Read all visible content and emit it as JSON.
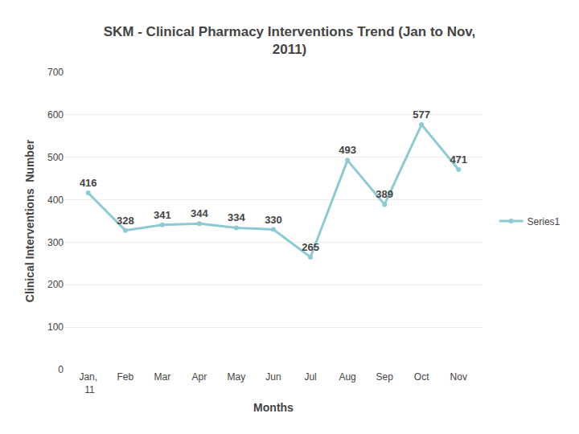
{
  "chart_data": {
    "type": "line",
    "title": "SKM - Clinical Pharmacy Interventions Trend (Jan to Nov,\n2011)",
    "xlabel": "Months",
    "ylabel": "Clinical Interventions  Number",
    "categories": [
      "Jan,\n 11",
      "Feb",
      "Mar",
      "Apr",
      "May",
      "Jun",
      "Jul",
      "Aug",
      "Sep",
      "Oct",
      "Nov"
    ],
    "series": [
      {
        "name": "Series1",
        "color": "#8ecad4",
        "marker": "circle",
        "values": [
          416,
          328,
          341,
          344,
          334,
          330,
          265,
          493,
          389,
          577,
          471
        ]
      }
    ],
    "ylim": [
      0,
      700
    ],
    "yticks": [
      0,
      100,
      200,
      300,
      400,
      500,
      600,
      700
    ],
    "grid": true,
    "legend": "right",
    "data_labels": true
  }
}
